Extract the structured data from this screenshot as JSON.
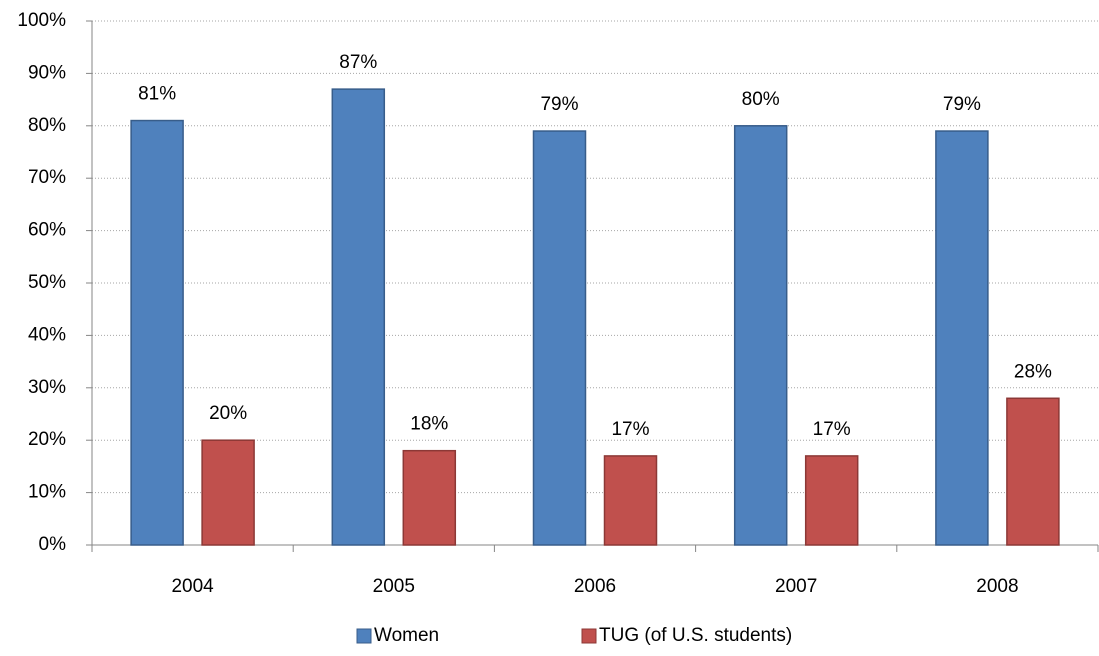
{
  "chart_data": {
    "type": "bar",
    "categories": [
      "2004",
      "2005",
      "2006",
      "2007",
      "2008"
    ],
    "series": [
      {
        "name": "Women",
        "color": "#4f81bd",
        "values": [
          81,
          87,
          79,
          80,
          79
        ],
        "value_labels": [
          "81%",
          "87%",
          "79%",
          "80%",
          "79%"
        ]
      },
      {
        "name": "TUG (of U.S. students)",
        "color": "#c0504d",
        "values": [
          20,
          18,
          17,
          17,
          28
        ],
        "value_labels": [
          "20%",
          "18%",
          "17%",
          "17%",
          "28%"
        ]
      }
    ],
    "ylim": [
      0,
      100
    ],
    "yticks": [
      {
        "value": 0,
        "label": "0%"
      },
      {
        "value": 10,
        "label": "10%"
      },
      {
        "value": 20,
        "label": "20%"
      },
      {
        "value": 30,
        "label": "30%"
      },
      {
        "value": 40,
        "label": "40%"
      },
      {
        "value": 50,
        "label": "50%"
      },
      {
        "value": 60,
        "label": "60%"
      },
      {
        "value": 70,
        "label": "70%"
      },
      {
        "value": 80,
        "label": "80%"
      },
      {
        "value": 90,
        "label": "90%"
      },
      {
        "value": 100,
        "label": "100%"
      }
    ],
    "grid": true,
    "legend": "bottom"
  }
}
